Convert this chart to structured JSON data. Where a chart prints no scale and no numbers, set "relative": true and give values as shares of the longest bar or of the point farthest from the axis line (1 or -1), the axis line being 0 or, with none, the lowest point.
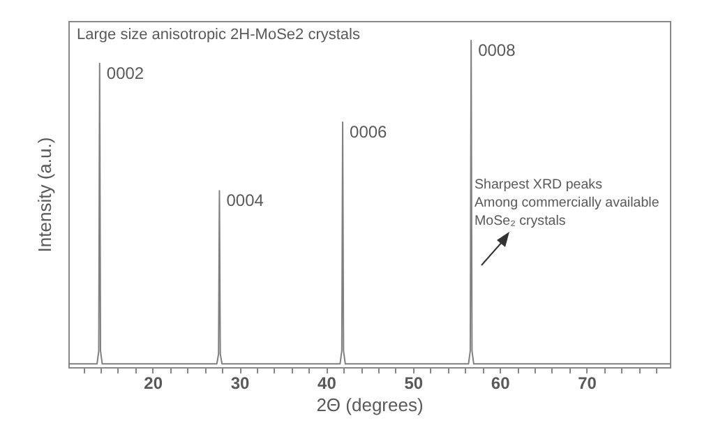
{
  "chart_data": {
    "type": "line",
    "relative": true,
    "xlabel": "2Θ (degrees)",
    "ylabel": "Intensity (a.u.)",
    "xlim": [
      10.3,
      79.6
    ],
    "xticks": [
      {
        "value": 12,
        "label": null
      },
      {
        "value": 14,
        "label": null
      },
      {
        "value": 16,
        "label": null
      },
      {
        "value": 18,
        "label": null
      },
      20,
      {
        "value": 22,
        "label": null
      },
      {
        "value": 24,
        "label": null
      },
      {
        "value": 26,
        "label": null
      },
      {
        "value": 28,
        "label": null
      },
      30,
      {
        "value": 32,
        "label": null
      },
      {
        "value": 34,
        "label": null
      },
      {
        "value": 36,
        "label": null
      },
      {
        "value": 38,
        "label": null
      },
      40,
      {
        "value": 42,
        "label": null
      },
      {
        "value": 44,
        "label": null
      },
      {
        "value": 46,
        "label": null
      },
      {
        "value": 48,
        "label": null
      },
      50,
      {
        "value": 52,
        "label": null
      },
      {
        "value": 54,
        "label": null
      },
      {
        "value": 56,
        "label": null
      },
      {
        "value": 58,
        "label": null
      },
      60,
      {
        "value": 62,
        "label": null
      },
      {
        "value": 64,
        "label": null
      },
      {
        "value": 66,
        "label": null
      },
      {
        "value": 68,
        "label": null
      },
      70,
      {
        "value": 72,
        "label": null
      },
      {
        "value": 74,
        "label": null
      },
      {
        "value": 76,
        "label": null
      },
      {
        "value": 78,
        "label": null
      }
    ],
    "grid": false,
    "x": [
      10.3,
      13.6,
      13.8,
      13.9,
      14.0,
      14.2,
      27.4,
      27.6,
      27.7,
      27.8,
      28.0,
      41.6,
      41.8,
      41.9,
      42.0,
      42.2,
      56.4,
      56.6,
      56.7,
      56.8,
      57.0,
      79.6
    ],
    "series": [
      {
        "color": "#808080",
        "values": [
          0.01,
          0.01,
          0.05,
          0.93,
          0.05,
          0.01,
          0.01,
          0.04,
          0.54,
          0.04,
          0.01,
          0.01,
          0.05,
          0.75,
          0.05,
          0.01,
          0.01,
          0.05,
          1,
          0.05,
          0.01,
          0.01
        ]
      }
    ],
    "annotations": [
      "Large size anisotropic 2H-MoSe2 crystals",
      {
        "text": "0002",
        "x": 13.9,
        "y": 0.93
      },
      {
        "text": "0004",
        "x": 27.7,
        "y": 0.54
      },
      {
        "text": "0006",
        "x": 41.9,
        "y": 0.75
      },
      {
        "text": "0008",
        "x": 56.7,
        "y": 1
      },
      "Sharpest XRD peaks\nAmong commercially available\nMoSe₂ crystals"
    ]
  }
}
